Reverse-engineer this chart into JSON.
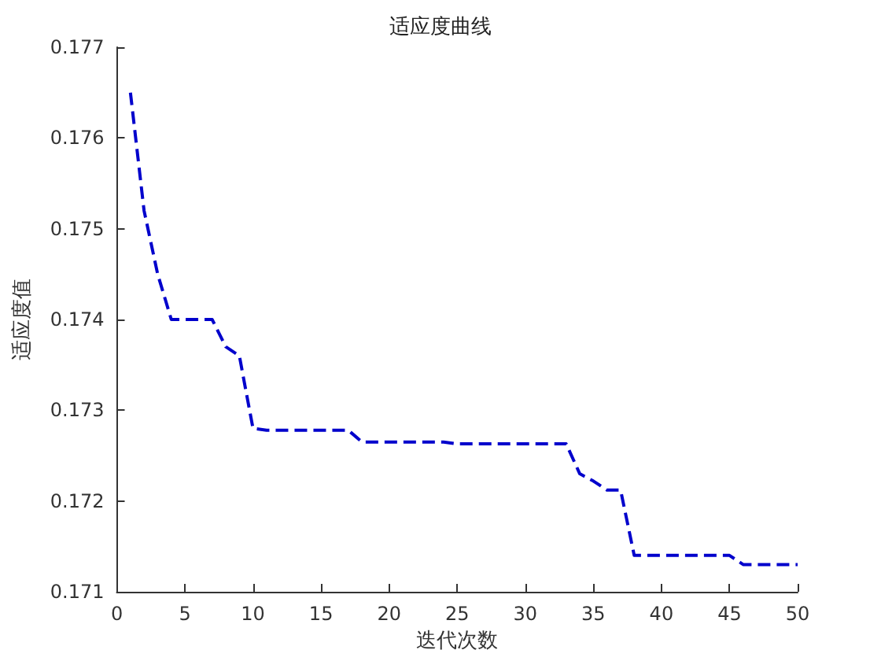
{
  "chart_data": {
    "type": "line",
    "title": "适应度曲线",
    "xlabel": "迭代次数",
    "ylabel": "适应度值",
    "x": [
      1,
      2,
      3,
      4,
      5,
      6,
      7,
      8,
      9,
      10,
      11,
      12,
      13,
      14,
      15,
      16,
      17,
      18,
      19,
      20,
      21,
      22,
      23,
      24,
      25,
      26,
      27,
      28,
      29,
      30,
      31,
      32,
      33,
      34,
      35,
      36,
      37,
      38,
      39,
      40,
      41,
      42,
      43,
      44,
      45,
      46,
      47,
      48,
      49,
      50
    ],
    "series": [
      {
        "color": "#0000cc",
        "values": [
          0.1765,
          0.1752,
          0.1745,
          0.174,
          0.174,
          0.174,
          0.174,
          0.1737,
          0.1736,
          0.1728,
          0.17278,
          0.17278,
          0.17278,
          0.17278,
          0.17278,
          0.17278,
          0.17278,
          0.17265,
          0.17265,
          0.17265,
          0.17265,
          0.17265,
          0.17265,
          0.17265,
          0.17263,
          0.17263,
          0.17263,
          0.17263,
          0.17263,
          0.17263,
          0.17263,
          0.17263,
          0.17263,
          0.1723,
          0.17222,
          0.17212,
          0.17212,
          0.1714,
          0.1714,
          0.1714,
          0.1714,
          0.1714,
          0.1714,
          0.1714,
          0.1714,
          0.1713,
          0.1713,
          0.1713,
          0.1713,
          0.1713
        ]
      }
    ],
    "xlim": [
      0,
      50
    ],
    "xticks": [
      0,
      5,
      10,
      15,
      20,
      25,
      30,
      35,
      40,
      45,
      50
    ],
    "ylim": [
      0.171,
      0.177
    ],
    "yticks": [
      0.171,
      0.172,
      0.173,
      0.174,
      0.175,
      0.176,
      0.177
    ],
    "grid": false,
    "marker": "none",
    "line_style": "dashed"
  }
}
